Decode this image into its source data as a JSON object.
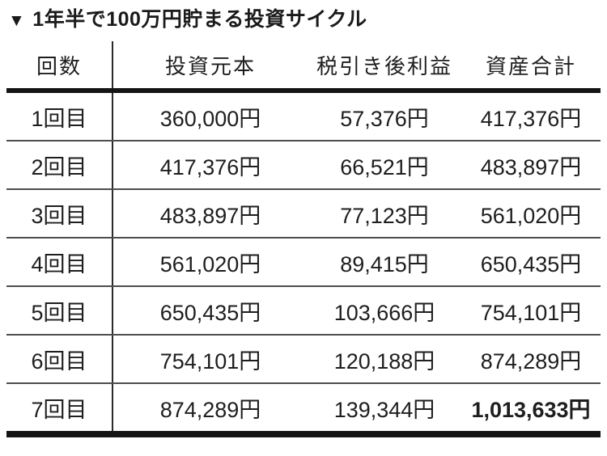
{
  "title": {
    "marker": "▼",
    "text": "1年半で100万円貯まる投資サイクル"
  },
  "table": {
    "headers": [
      "回数",
      "投資元本",
      "税引き後利益",
      "資産合計"
    ],
    "rows": [
      {
        "count": "1回目",
        "principal": "360,000円",
        "profit": "57,376円",
        "total": "417,376円"
      },
      {
        "count": "2回目",
        "principal": "417,376円",
        "profit": "66,521円",
        "total": "483,897円"
      },
      {
        "count": "3回目",
        "principal": "483,897円",
        "profit": "77,123円",
        "total": "561,020円"
      },
      {
        "count": "4回目",
        "principal": "561,020円",
        "profit": "89,415円",
        "total": "650,435円"
      },
      {
        "count": "5回目",
        "principal": "650,435円",
        "profit": "103,666円",
        "total": "754,101円"
      },
      {
        "count": "6回目",
        "principal": "754,101円",
        "profit": "120,188円",
        "total": "874,289円"
      },
      {
        "count": "7回目",
        "principal": "874,289円",
        "profit": "139,344円",
        "total": "1,013,633円"
      }
    ],
    "colors": {
      "text": "#1e1e1e",
      "thick_rule": "#141414",
      "thin_rule": "#4d4d4d"
    }
  }
}
